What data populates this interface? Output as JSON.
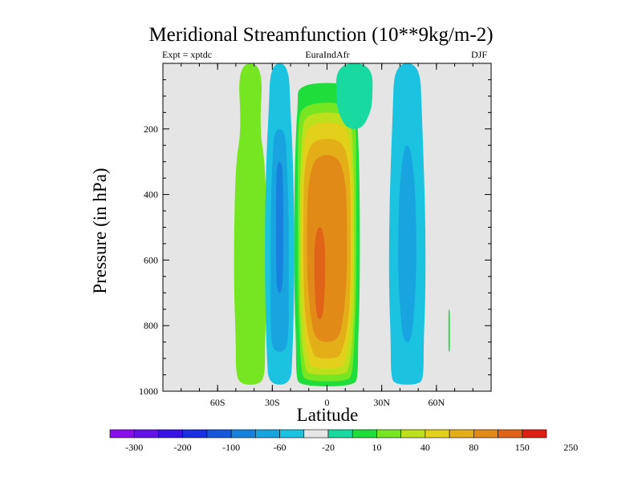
{
  "title": "Meridional Streamfunction (10**9kg/m-2)",
  "subtitle_left": "Expt = xptdc",
  "subtitle_center": "EuraIndAfr",
  "subtitle_right": "DJF",
  "chart_data": {
    "type": "heatmap",
    "title": "Meridional Streamfunction (10**9kg/m-2)",
    "xlabel": "Latitude",
    "ylabel": "Pressure (in hPa)",
    "x_ticks": [
      {
        "value": -60,
        "label": "60S"
      },
      {
        "value": -30,
        "label": "30S"
      },
      {
        "value": 0,
        "label": "0"
      },
      {
        "value": 30,
        "label": "30N"
      },
      {
        "value": 60,
        "label": "60N"
      }
    ],
    "y_ticks": [
      {
        "value": 200,
        "label": "200"
      },
      {
        "value": 400,
        "label": "400"
      },
      {
        "value": 600,
        "label": "600"
      },
      {
        "value": 800,
        "label": "800"
      },
      {
        "value": 1000,
        "label": "1000"
      }
    ],
    "xlim": [
      -90,
      90
    ],
    "ylim": [
      0,
      1000
    ],
    "y_reversed": true,
    "background_color": "#e5e5e5",
    "colorbar": {
      "labels": [
        "-300",
        "-200",
        "-100",
        "-60",
        "-20",
        "10",
        "40",
        "80",
        "150",
        "250"
      ],
      "colors": [
        "#8a0eea",
        "#6211e6",
        "#3a14e4",
        "#1a2fe2",
        "#1757dc",
        "#1782dd",
        "#18a5df",
        "#1bc3e0",
        "#e5e5e5",
        "#18d9a0",
        "#1fdd3a",
        "#77e622",
        "#bde01c",
        "#e2d01a",
        "#e4ae19",
        "#e28a18",
        "#e06417",
        "#de2014"
      ]
    },
    "bands": [
      {
        "lat": -42,
        "value": 25,
        "color": "#77e622",
        "levels": [
          [
            0,
            7
          ],
          [
            200,
            5
          ],
          [
            300,
            8
          ],
          [
            500,
            9
          ],
          [
            700,
            9
          ],
          [
            850,
            8
          ],
          [
            950,
            8
          ],
          [
            980,
            5
          ]
        ]
      },
      {
        "lat": -26,
        "value": -40,
        "color": "#1bc3e0",
        "levels": [
          [
            0,
            5
          ],
          [
            150,
            6
          ],
          [
            250,
            7
          ],
          [
            450,
            8
          ],
          [
            700,
            8
          ],
          [
            900,
            7
          ],
          [
            980,
            6
          ]
        ]
      },
      {
        "lat": -26,
        "value": -80,
        "color": "#18a5df",
        "levels": [
          [
            200,
            3
          ],
          [
            300,
            4
          ],
          [
            450,
            5
          ],
          [
            700,
            5
          ],
          [
            800,
            5
          ],
          [
            880,
            4
          ]
        ]
      },
      {
        "lat": -26,
        "value": -100,
        "color": "#1782dd",
        "levels": [
          [
            300,
            1.5
          ],
          [
            400,
            2
          ],
          [
            500,
            2
          ],
          [
            600,
            2
          ],
          [
            700,
            1.5
          ]
        ]
      },
      {
        "lat": 0,
        "value": 20,
        "color": "#1fdd3a",
        "levels": [
          [
            60,
            16
          ],
          [
            130,
            16
          ],
          [
            200,
            17
          ],
          [
            400,
            18
          ],
          [
            700,
            18
          ],
          [
            850,
            17
          ],
          [
            950,
            17
          ],
          [
            985,
            15
          ]
        ]
      },
      {
        "lat": 0,
        "value": 40,
        "color": "#77e622",
        "levels": [
          [
            120,
            14
          ],
          [
            200,
            16
          ],
          [
            400,
            16
          ],
          [
            700,
            16
          ],
          [
            850,
            15
          ],
          [
            940,
            14
          ],
          [
            970,
            12
          ]
        ]
      },
      {
        "lat": 0,
        "value": 80,
        "color": "#bde01c",
        "levels": [
          [
            150,
            12
          ],
          [
            220,
            14
          ],
          [
            400,
            15
          ],
          [
            700,
            15
          ],
          [
            850,
            14
          ],
          [
            930,
            12
          ],
          [
            950,
            10
          ]
        ]
      },
      {
        "lat": 0,
        "value": 100,
        "color": "#e2d01a",
        "levels": [
          [
            180,
            10
          ],
          [
            250,
            13
          ],
          [
            400,
            14
          ],
          [
            700,
            14
          ],
          [
            850,
            12
          ],
          [
            910,
            10
          ],
          [
            930,
            8
          ]
        ]
      },
      {
        "lat": 0,
        "value": 150,
        "color": "#e4ae19",
        "levels": [
          [
            230,
            8
          ],
          [
            300,
            12
          ],
          [
            400,
            13
          ],
          [
            700,
            13
          ],
          [
            820,
            11
          ],
          [
            880,
            8
          ],
          [
            900,
            6
          ]
        ]
      },
      {
        "lat": 0,
        "value": 200,
        "color": "#e28a18",
        "levels": [
          [
            280,
            6
          ],
          [
            350,
            10
          ],
          [
            450,
            11
          ],
          [
            650,
            11
          ],
          [
            780,
            9
          ],
          [
            850,
            6
          ]
        ]
      },
      {
        "lat": -4,
        "value": 250,
        "color": "#e06417",
        "levels": [
          [
            500,
            1.5
          ],
          [
            560,
            3
          ],
          [
            650,
            3
          ],
          [
            720,
            2.5
          ],
          [
            780,
            1.5
          ]
        ]
      },
      {
        "lat": 15,
        "value": 10,
        "color": "#18d9a0",
        "levels": [
          [
            0,
            10
          ],
          [
            120,
            10
          ],
          [
            160,
            8
          ],
          [
            200,
            4
          ]
        ]
      },
      {
        "lat": 44,
        "value": -40,
        "color": "#1bc3e0",
        "levels": [
          [
            0,
            7
          ],
          [
            150,
            8
          ],
          [
            300,
            9
          ],
          [
            500,
            10
          ],
          [
            700,
            10
          ],
          [
            850,
            9
          ],
          [
            950,
            9
          ],
          [
            980,
            7
          ]
        ]
      },
      {
        "lat": 44,
        "value": -80,
        "color": "#18a5df",
        "levels": [
          [
            250,
            1.5
          ],
          [
            350,
            4
          ],
          [
            500,
            5
          ],
          [
            650,
            5
          ],
          [
            780,
            3.5
          ],
          [
            850,
            2
          ]
        ]
      },
      {
        "lat": 67,
        "value": 20,
        "color": "#1fdd3a",
        "levels": [
          [
            750,
            0.4
          ],
          [
            800,
            0.4
          ],
          [
            850,
            0.4
          ],
          [
            880,
            0.4
          ]
        ]
      }
    ]
  }
}
